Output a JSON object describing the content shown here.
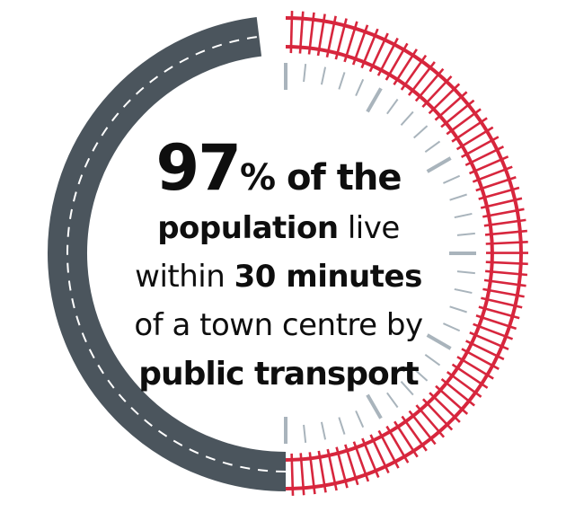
{
  "colors": {
    "road": "#4b555d",
    "road_marking": "#ffffff",
    "rail": "#d7263d",
    "clock_tick": "#a9b4bc",
    "text": "#0e0e0e"
  },
  "icons": {
    "road_arc": "road-arc-icon",
    "rail_arc": "railway-track-arc-icon",
    "clock_ticks": "clock-ticks-icon"
  },
  "headline": {
    "percent_value": "97",
    "percent_sign": "%",
    "l1_rest": " of the",
    "l2_bold": "population",
    "l2_rest": " live",
    "l3_pre": "within ",
    "l3_bold": "30 minutes",
    "l4": "of a town centre by",
    "l5_bold": "public transport"
  }
}
